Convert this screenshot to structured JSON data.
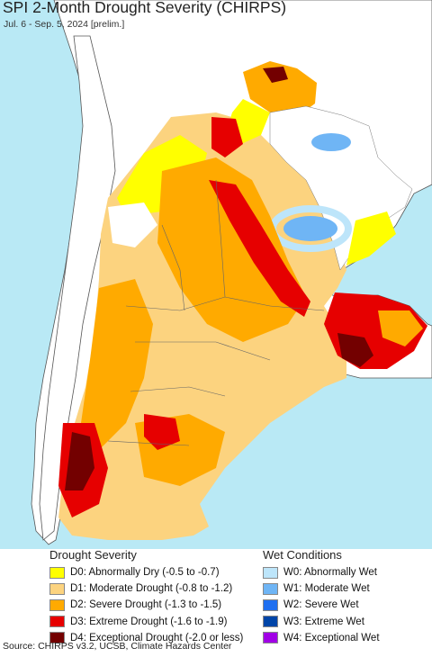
{
  "header": {
    "title": "SPI 2-Month Drought Severity (CHIRPS)",
    "subtitle": "Jul. 6 - Sep. 5, 2024 [prelim.]"
  },
  "map": {
    "colors": {
      "ocean": "#b9e9f5",
      "land_outside": "#ffffff",
      "border": "#555555",
      "d0": "#ffff00",
      "d1": "#fcd37f",
      "d2": "#ffaa00",
      "d3": "#e60000",
      "d4": "#730000",
      "w0": "#bde5fa",
      "w1": "#6fb5f5",
      "w2": "#1f6ff0"
    }
  },
  "legend": {
    "drought": {
      "title": "Drought Severity",
      "items": [
        {
          "label": "D0: Abnormally Dry (-0.5 to -0.7)",
          "color": "#ffff00"
        },
        {
          "label": "D1: Moderate Drought (-0.8 to -1.2)",
          "color": "#fcd37f"
        },
        {
          "label": "D2: Severe Drought (-1.3 to -1.5)",
          "color": "#ffaa00"
        },
        {
          "label": "D3: Extreme Drought (-1.6 to -1.9)",
          "color": "#e60000"
        },
        {
          "label": "D4: Exceptional Drought (-2.0 or less)",
          "color": "#730000"
        }
      ]
    },
    "wet": {
      "title": "Wet Conditions",
      "items": [
        {
          "label": "W0: Abnormally Wet",
          "color": "#bde5fa"
        },
        {
          "label": "W1: Moderate Wet",
          "color": "#6fb5f5"
        },
        {
          "label": "W2: Severe Wet",
          "color": "#1f6ff0"
        },
        {
          "label": "W3: Extreme Wet",
          "color": "#0045a8"
        },
        {
          "label": "W4: Exceptional Wet",
          "color": "#a100e6"
        }
      ]
    }
  },
  "footer": {
    "source": "Source: CHIRPS v3.2, UCSB, Climate Hazards Center"
  }
}
